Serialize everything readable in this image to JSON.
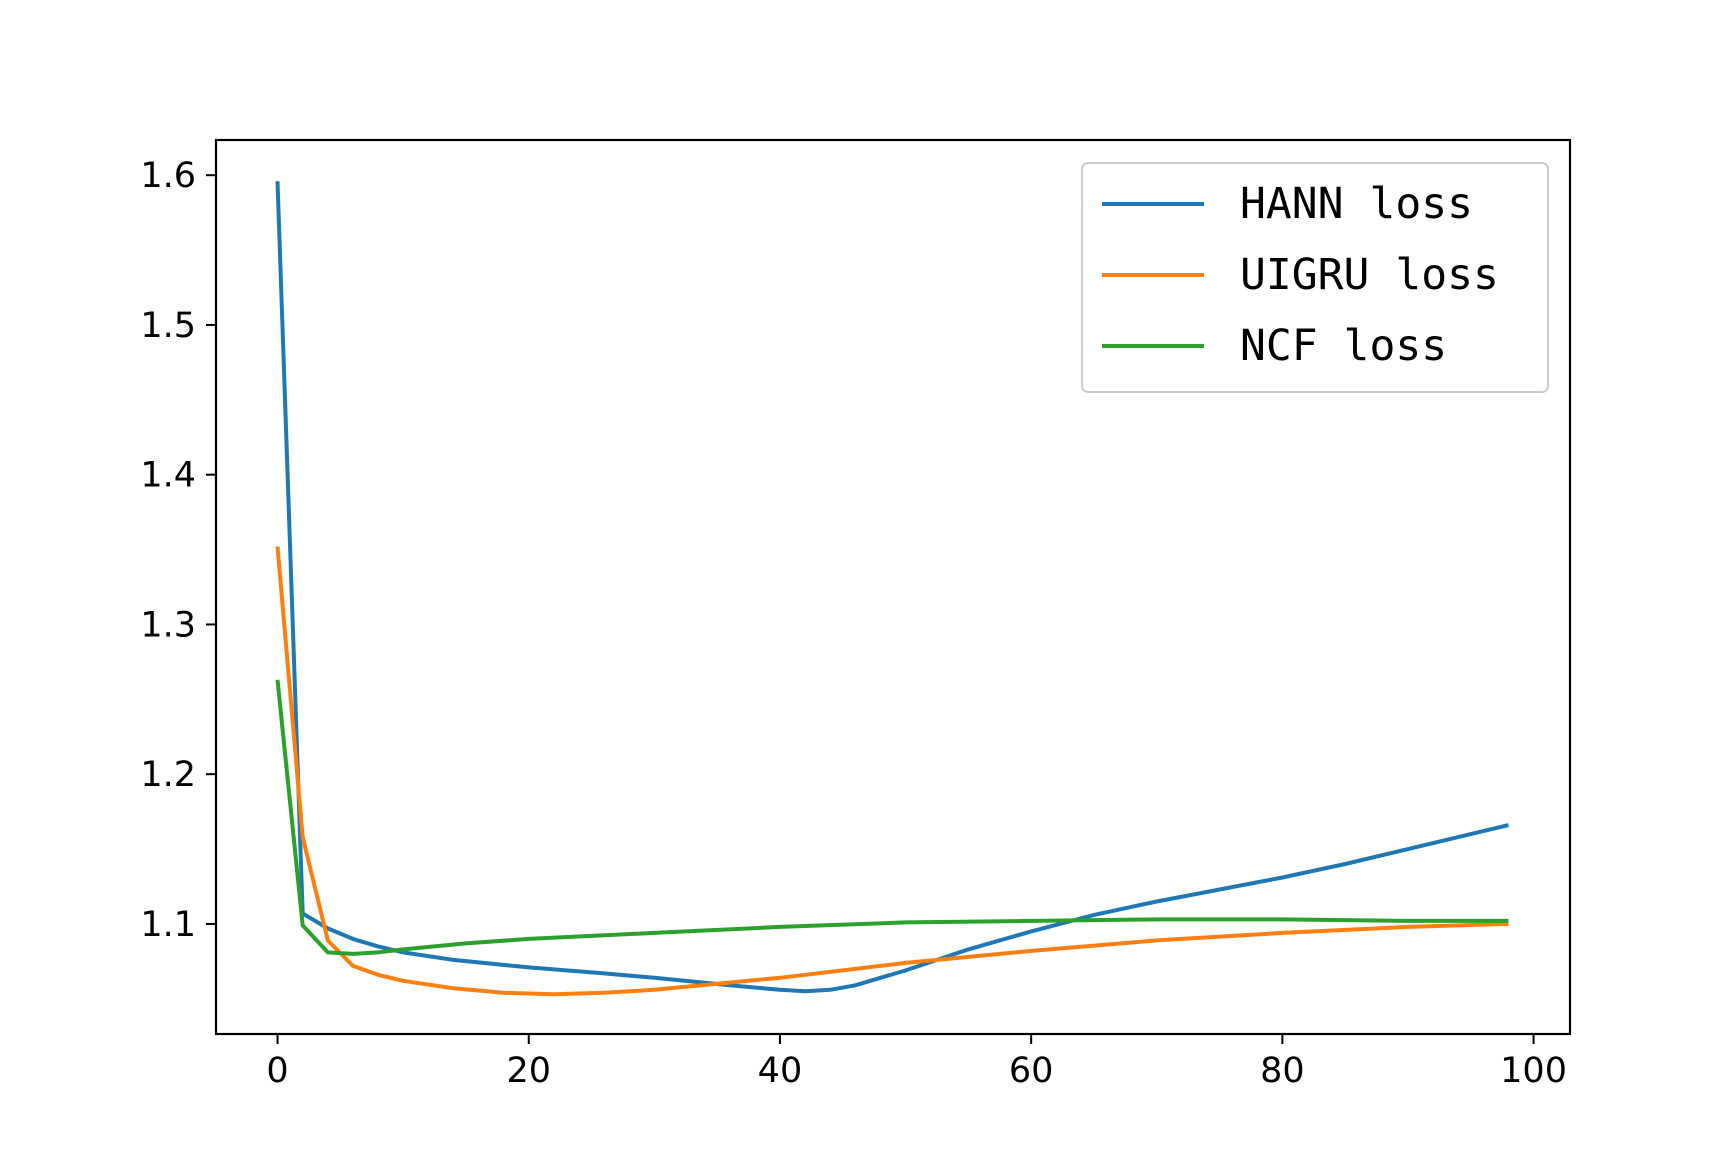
{
  "chart_data": {
    "type": "line",
    "title": "",
    "xlabel": "",
    "ylabel": "",
    "xlim": [
      -4.9,
      102.9
    ],
    "ylim": [
      1.0265,
      1.6235
    ],
    "xticks": [
      0,
      20,
      40,
      60,
      80,
      100
    ],
    "yticks": [
      1.1,
      1.2,
      1.3,
      1.4,
      1.5,
      1.6
    ],
    "xtick_labels": [
      "0",
      "20",
      "40",
      "60",
      "80",
      "100"
    ],
    "ytick_labels": [
      "1.1",
      "1.2",
      "1.3",
      "1.4",
      "1.5",
      "1.6"
    ],
    "grid": false,
    "legend": {
      "placement": "top-right"
    },
    "series": [
      {
        "name": "HANN loss",
        "color": "#1f77b4",
        "x": [
          0,
          2,
          4,
          6,
          8,
          10,
          14,
          20,
          26,
          30,
          36,
          40,
          42,
          44,
          46,
          50,
          55,
          60,
          65,
          70,
          75,
          80,
          85,
          90,
          95,
          98
        ],
        "y": [
          1.596,
          1.107,
          1.097,
          1.09,
          1.085,
          1.081,
          1.076,
          1.071,
          1.067,
          1.064,
          1.059,
          1.056,
          1.055,
          1.056,
          1.059,
          1.069,
          1.083,
          1.095,
          1.106,
          1.115,
          1.123,
          1.131,
          1.14,
          1.15,
          1.16,
          1.166
        ]
      },
      {
        "name": "UIGRU loss",
        "color": "#ff7f0e",
        "x": [
          0,
          2,
          4,
          6,
          8,
          10,
          14,
          18,
          22,
          26,
          30,
          35,
          40,
          50,
          60,
          70,
          80,
          90,
          98
        ],
        "y": [
          1.352,
          1.158,
          1.089,
          1.072,
          1.066,
          1.062,
          1.057,
          1.054,
          1.053,
          1.054,
          1.056,
          1.06,
          1.064,
          1.074,
          1.082,
          1.089,
          1.094,
          1.098,
          1.1
        ]
      },
      {
        "name": "NCF loss",
        "color": "#2ca02c",
        "x": [
          0,
          2,
          4,
          6,
          8,
          10,
          15,
          20,
          30,
          40,
          50,
          60,
          70,
          80,
          90,
          98
        ],
        "y": [
          1.263,
          1.099,
          1.081,
          1.08,
          1.081,
          1.083,
          1.087,
          1.09,
          1.094,
          1.098,
          1.101,
          1.102,
          1.103,
          1.103,
          1.102,
          1.102
        ]
      }
    ]
  }
}
